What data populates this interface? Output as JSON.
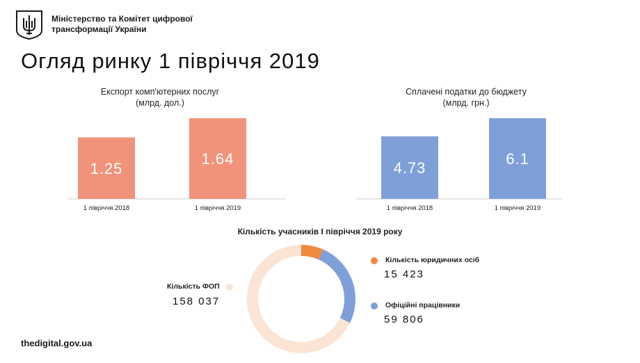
{
  "header": {
    "org_line1": "Міністерство та Комітет цифрової",
    "org_line2": "трансформації України"
  },
  "page_title": "Огляд ринку 1 півріччя 2019",
  "footer": {
    "site": "thedigital.gov.ua"
  },
  "colors": {
    "export_bar": "#f0937a",
    "tax_bar": "#7f9fd8",
    "fop": "#fbe4d3",
    "legal": "#ef8a3e",
    "employees": "#7f9fd8",
    "axis": "#cccccc"
  },
  "chart_data": [
    {
      "type": "bar",
      "title_line1": "Експорт комп'ютерних послуг",
      "title_line2": "(млрд. дол.)",
      "categories": [
        "1 півріччя 2018",
        "1 півріччя 2019"
      ],
      "values": [
        1.25,
        1.64
      ],
      "value_labels": [
        "1.25",
        "1.64"
      ],
      "ylim": [
        0,
        1.64
      ]
    },
    {
      "type": "bar",
      "title_line1": "Сплачені податки до бюджету",
      "title_line2": "(млрд. грн.)",
      "categories": [
        "1 півріччя 2018",
        "1 півріччя 2019"
      ],
      "values": [
        4.73,
        6.1
      ],
      "value_labels": [
        "4.73",
        "6.1"
      ],
      "ylim": [
        0,
        6.1
      ]
    },
    {
      "type": "pie",
      "title": "Кількість учасників І півріччя 2019 року",
      "slices": [
        {
          "label": "Кількість юридичних осіб",
          "value": 15423,
          "value_text": "15 423"
        },
        {
          "label": "Офіційні працівники",
          "value": 59806,
          "value_text": "59 806"
        },
        {
          "label": "Кількість ФОП",
          "value": 158037,
          "value_text": "158 037"
        }
      ]
    }
  ]
}
